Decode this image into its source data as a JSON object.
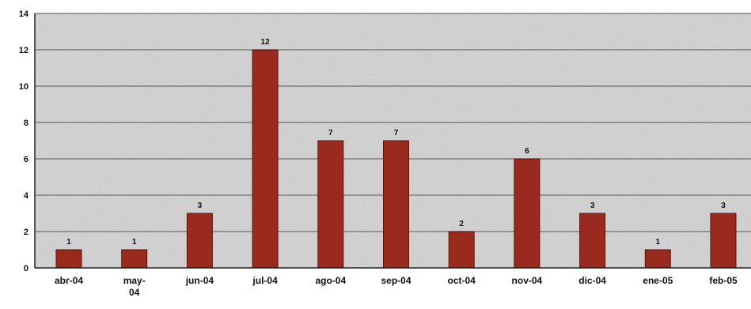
{
  "chart_data": {
    "type": "bar",
    "categories": [
      "abr-04",
      "may-04",
      "jun-04",
      "jul-04",
      "ago-04",
      "sep-04",
      "oct-04",
      "nov-04",
      "dic-04",
      "ene-05",
      "feb-05"
    ],
    "values": [
      1,
      1,
      3,
      12,
      7,
      7,
      2,
      6,
      3,
      1,
      3
    ],
    "ylim": [
      0,
      14
    ],
    "yticks": [
      0,
      2,
      4,
      6,
      8,
      10,
      12,
      14
    ],
    "grid": true,
    "legend": "none",
    "title": "",
    "xlabel": "",
    "ylabel": "",
    "colors": {
      "bar": "#9b2a1e",
      "bar_edge": "#5a140d",
      "plot_bg": "#d4d4d4",
      "gridline": "#6f6f6f",
      "axis": "#222222"
    }
  }
}
